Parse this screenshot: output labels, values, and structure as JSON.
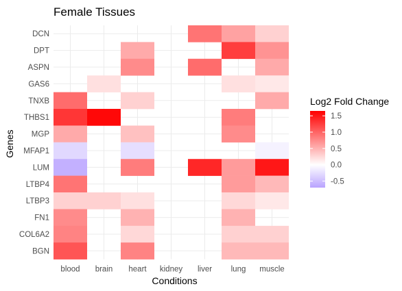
{
  "chart_data": {
    "type": "heatmap",
    "title": "Female Tissues",
    "xlabel": "Conditions",
    "ylabel": "Genes",
    "x": [
      "blood",
      "brain",
      "heart",
      "kidney",
      "liver",
      "lung",
      "muscle"
    ],
    "y": [
      "DCN",
      "DPT",
      "ASPN",
      "GAS6",
      "TNXB",
      "THBS1",
      "MGP",
      "MFAP1",
      "LUM",
      "LTBP4",
      "LTBP3",
      "FN1",
      "COL6A2",
      "BGN"
    ],
    "values": [
      [
        null,
        null,
        null,
        null,
        0.9,
        0.6,
        0.3
      ],
      [
        null,
        null,
        0.55,
        null,
        null,
        1.25,
        0.7
      ],
      [
        null,
        null,
        0.75,
        null,
        0.95,
        null,
        0.55
      ],
      [
        null,
        0.2,
        null,
        null,
        null,
        0.2,
        0.15
      ],
      [
        0.95,
        null,
        0.3,
        null,
        null,
        null,
        0.55
      ],
      [
        1.3,
        1.6,
        null,
        null,
        null,
        0.85,
        null
      ],
      [
        0.55,
        null,
        0.4,
        null,
        null,
        0.75,
        null
      ],
      [
        -0.3,
        null,
        -0.25,
        null,
        null,
        null,
        -0.1
      ],
      [
        -0.6,
        null,
        0.85,
        null,
        1.4,
        0.65,
        1.5
      ],
      [
        0.9,
        null,
        null,
        null,
        null,
        0.65,
        0.45
      ],
      [
        0.3,
        0.3,
        0.2,
        null,
        null,
        0.25,
        0.15
      ],
      [
        0.75,
        null,
        0.5,
        null,
        null,
        0.5,
        null
      ],
      [
        0.8,
        null,
        0.25,
        null,
        null,
        0.3,
        0.3
      ],
      [
        1.1,
        null,
        0.8,
        null,
        null,
        0.45,
        0.45
      ]
    ],
    "legend": {
      "title": "Log2 Fold Change",
      "breaks": [
        1.5,
        1.0,
        0.5,
        0.0,
        -0.5
      ],
      "break_labels": [
        "1.5",
        "1.0",
        "0.5",
        "0.0",
        "-0.5"
      ],
      "range": [
        -0.7,
        1.65
      ],
      "position": "right"
    },
    "colors": {
      "high": "#ff0000",
      "mid": "#ffffff",
      "low": "#b9a3ff"
    },
    "grid": true
  }
}
